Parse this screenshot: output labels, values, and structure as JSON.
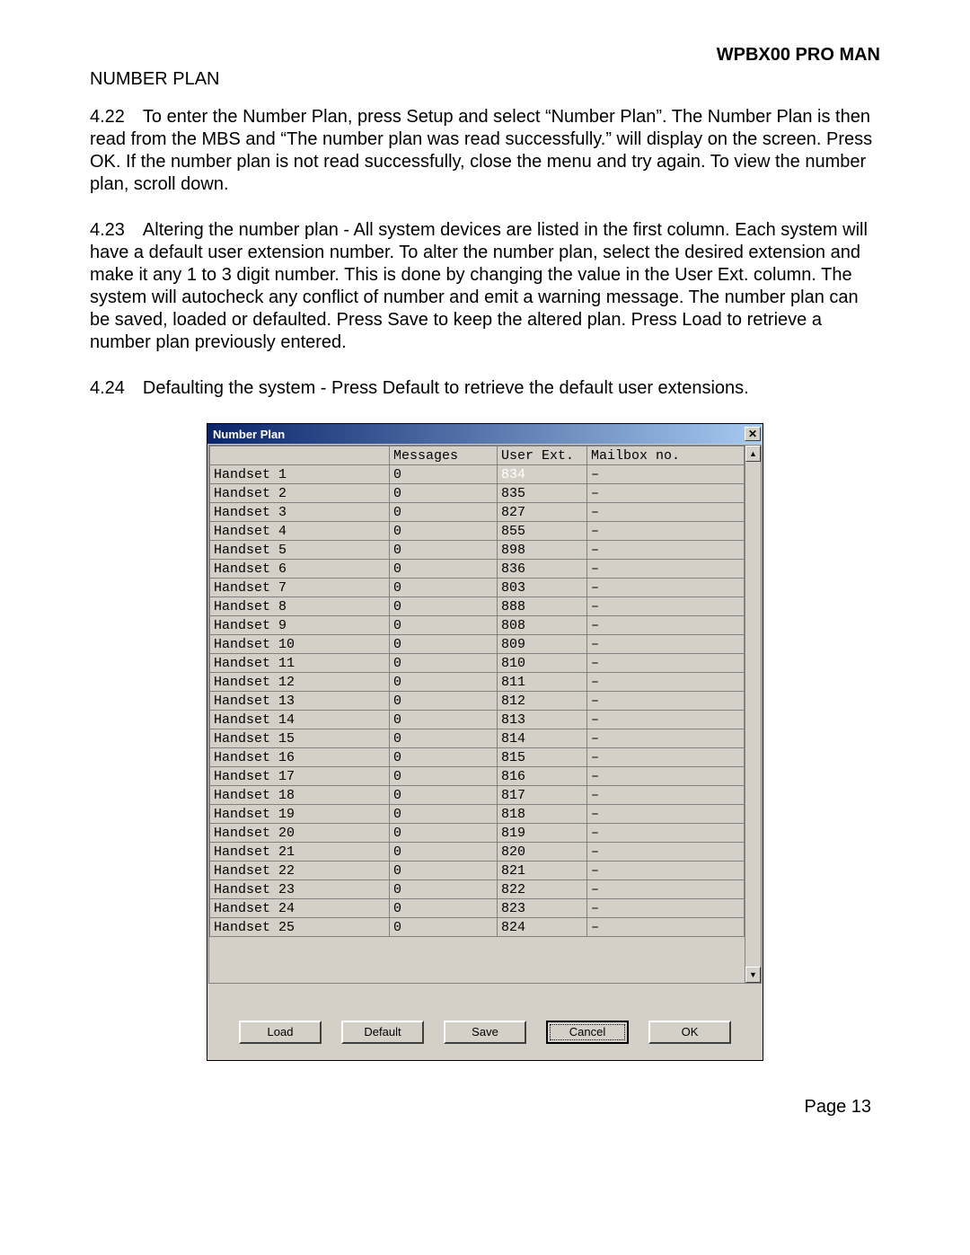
{
  "doc": {
    "header": "WPBX00 PRO MAN",
    "section_title": "NUMBER PLAN",
    "para_422": "4.22 To enter the Number Plan, press Setup and select “Number Plan”.\nThe Number Plan is then read from the MBS and “The number plan was read successfully.” will display on the screen.  Press OK.  If the number plan is not read successfully, close the menu and try again.  To view the number plan, scroll down.",
    "para_423": "4.23 Altering the number plan - All system devices are listed in the first column.  Each system will have a default user extension number.  To alter the number plan, select the desired extension and make it any 1 to 3 digit number.  This is done by  changing the value in the User Ext. column.  The system will autocheck any conflict of number and emit a warning message.  The number plan can be saved, loaded or defaulted. Press Save to keep the altered plan.  Press Load to retrieve a number plan previously entered.",
    "para_424": "4.24 Defaulting the system - Press Default to retrieve the default user extensions.",
    "page_num": "Page 13"
  },
  "dialog": {
    "title": "Number Plan",
    "close_glyph": "✕",
    "columns": [
      "",
      "Messages",
      "User Ext.",
      "Mailbox no."
    ],
    "selected_row": 0,
    "selected_col": 2,
    "rows": [
      [
        "Handset 1",
        "0",
        "834",
        "–"
      ],
      [
        "Handset 2",
        "0",
        "835",
        "–"
      ],
      [
        "Handset 3",
        "0",
        "827",
        "–"
      ],
      [
        "Handset 4",
        "0",
        "855",
        "–"
      ],
      [
        "Handset 5",
        "0",
        "898",
        "–"
      ],
      [
        "Handset 6",
        "0",
        "836",
        "–"
      ],
      [
        "Handset 7",
        "0",
        "803",
        "–"
      ],
      [
        "Handset 8",
        "0",
        "888",
        "–"
      ],
      [
        "Handset 9",
        "0",
        "808",
        "–"
      ],
      [
        "Handset 10",
        "0",
        "809",
        "–"
      ],
      [
        "Handset 11",
        "0",
        "810",
        "–"
      ],
      [
        "Handset 12",
        "0",
        "811",
        "–"
      ],
      [
        "Handset 13",
        "0",
        "812",
        "–"
      ],
      [
        "Handset 14",
        "0",
        "813",
        "–"
      ],
      [
        "Handset 15",
        "0",
        "814",
        "–"
      ],
      [
        "Handset 16",
        "0",
        "815",
        "–"
      ],
      [
        "Handset 17",
        "0",
        "816",
        "–"
      ],
      [
        "Handset 18",
        "0",
        "817",
        "–"
      ],
      [
        "Handset 19",
        "0",
        "818",
        "–"
      ],
      [
        "Handset 20",
        "0",
        "819",
        "–"
      ],
      [
        "Handset 21",
        "0",
        "820",
        "–"
      ],
      [
        "Handset 22",
        "0",
        "821",
        "–"
      ],
      [
        "Handset 23",
        "0",
        "822",
        "–"
      ],
      [
        "Handset 24",
        "0",
        "823",
        "–"
      ],
      [
        "Handset 25",
        "0",
        "824",
        "–"
      ]
    ],
    "buttons": {
      "load": "Load",
      "default": "Default",
      "save": "Save",
      "cancel": "Cancel",
      "ok": "OK"
    },
    "scroll_up_glyph": "▲",
    "scroll_down_glyph": "▼"
  },
  "colors": {
    "titlebar_start": "#0a246a",
    "titlebar_end": "#a6caf0",
    "dialog_bg": "#d4d0c8",
    "selection_bg": "#0a246a",
    "selection_fg": "#ffffff",
    "grid_border": "#808080"
  }
}
